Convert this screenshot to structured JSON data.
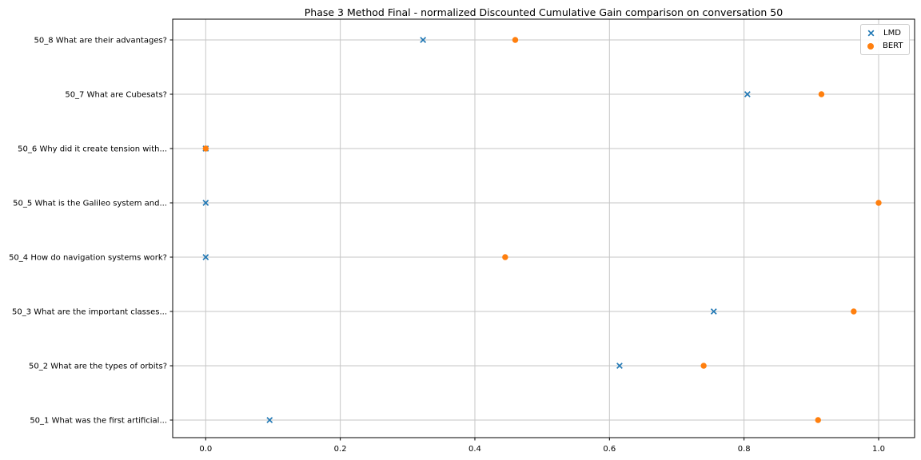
{
  "chart_data": {
    "type": "scatter",
    "title": "Phase 3 Method Final - normalized Discounted Cumulative Gain comparison on conversation 50",
    "orientation": "horizontal-categories",
    "categories_top_to_bottom": [
      "50_8 What are their advantages?",
      "50_7 What are Cubesats?",
      "50_6 Why did it create tension with...",
      "50_5 What is the Galileo system and...",
      "50_4 How do navigation systems work?",
      "50_3 What are the important classes...",
      "50_2 What are the types of orbits?",
      "50_1 What was the first artificial..."
    ],
    "series": [
      {
        "name": "LMD",
        "marker": "x",
        "color": "#1f77b4",
        "values_top_to_bottom": [
          0.323,
          0.805,
          0.0,
          0.0,
          0.0,
          0.755,
          0.615,
          0.095
        ]
      },
      {
        "name": "BERT",
        "marker": "circle",
        "color": "#ff7f0e",
        "values_top_to_bottom": [
          0.46,
          0.915,
          0.0,
          1.0,
          0.445,
          0.963,
          0.74,
          0.91
        ]
      }
    ],
    "x_ticks": [
      "0.0",
      "0.2",
      "0.4",
      "0.6",
      "0.8",
      "1.0"
    ],
    "xlim": [
      -0.05,
      1.05
    ],
    "grid": true,
    "legend_position": "upper right",
    "grid_color": "#c6c6c6",
    "spine_color": "#000000"
  }
}
